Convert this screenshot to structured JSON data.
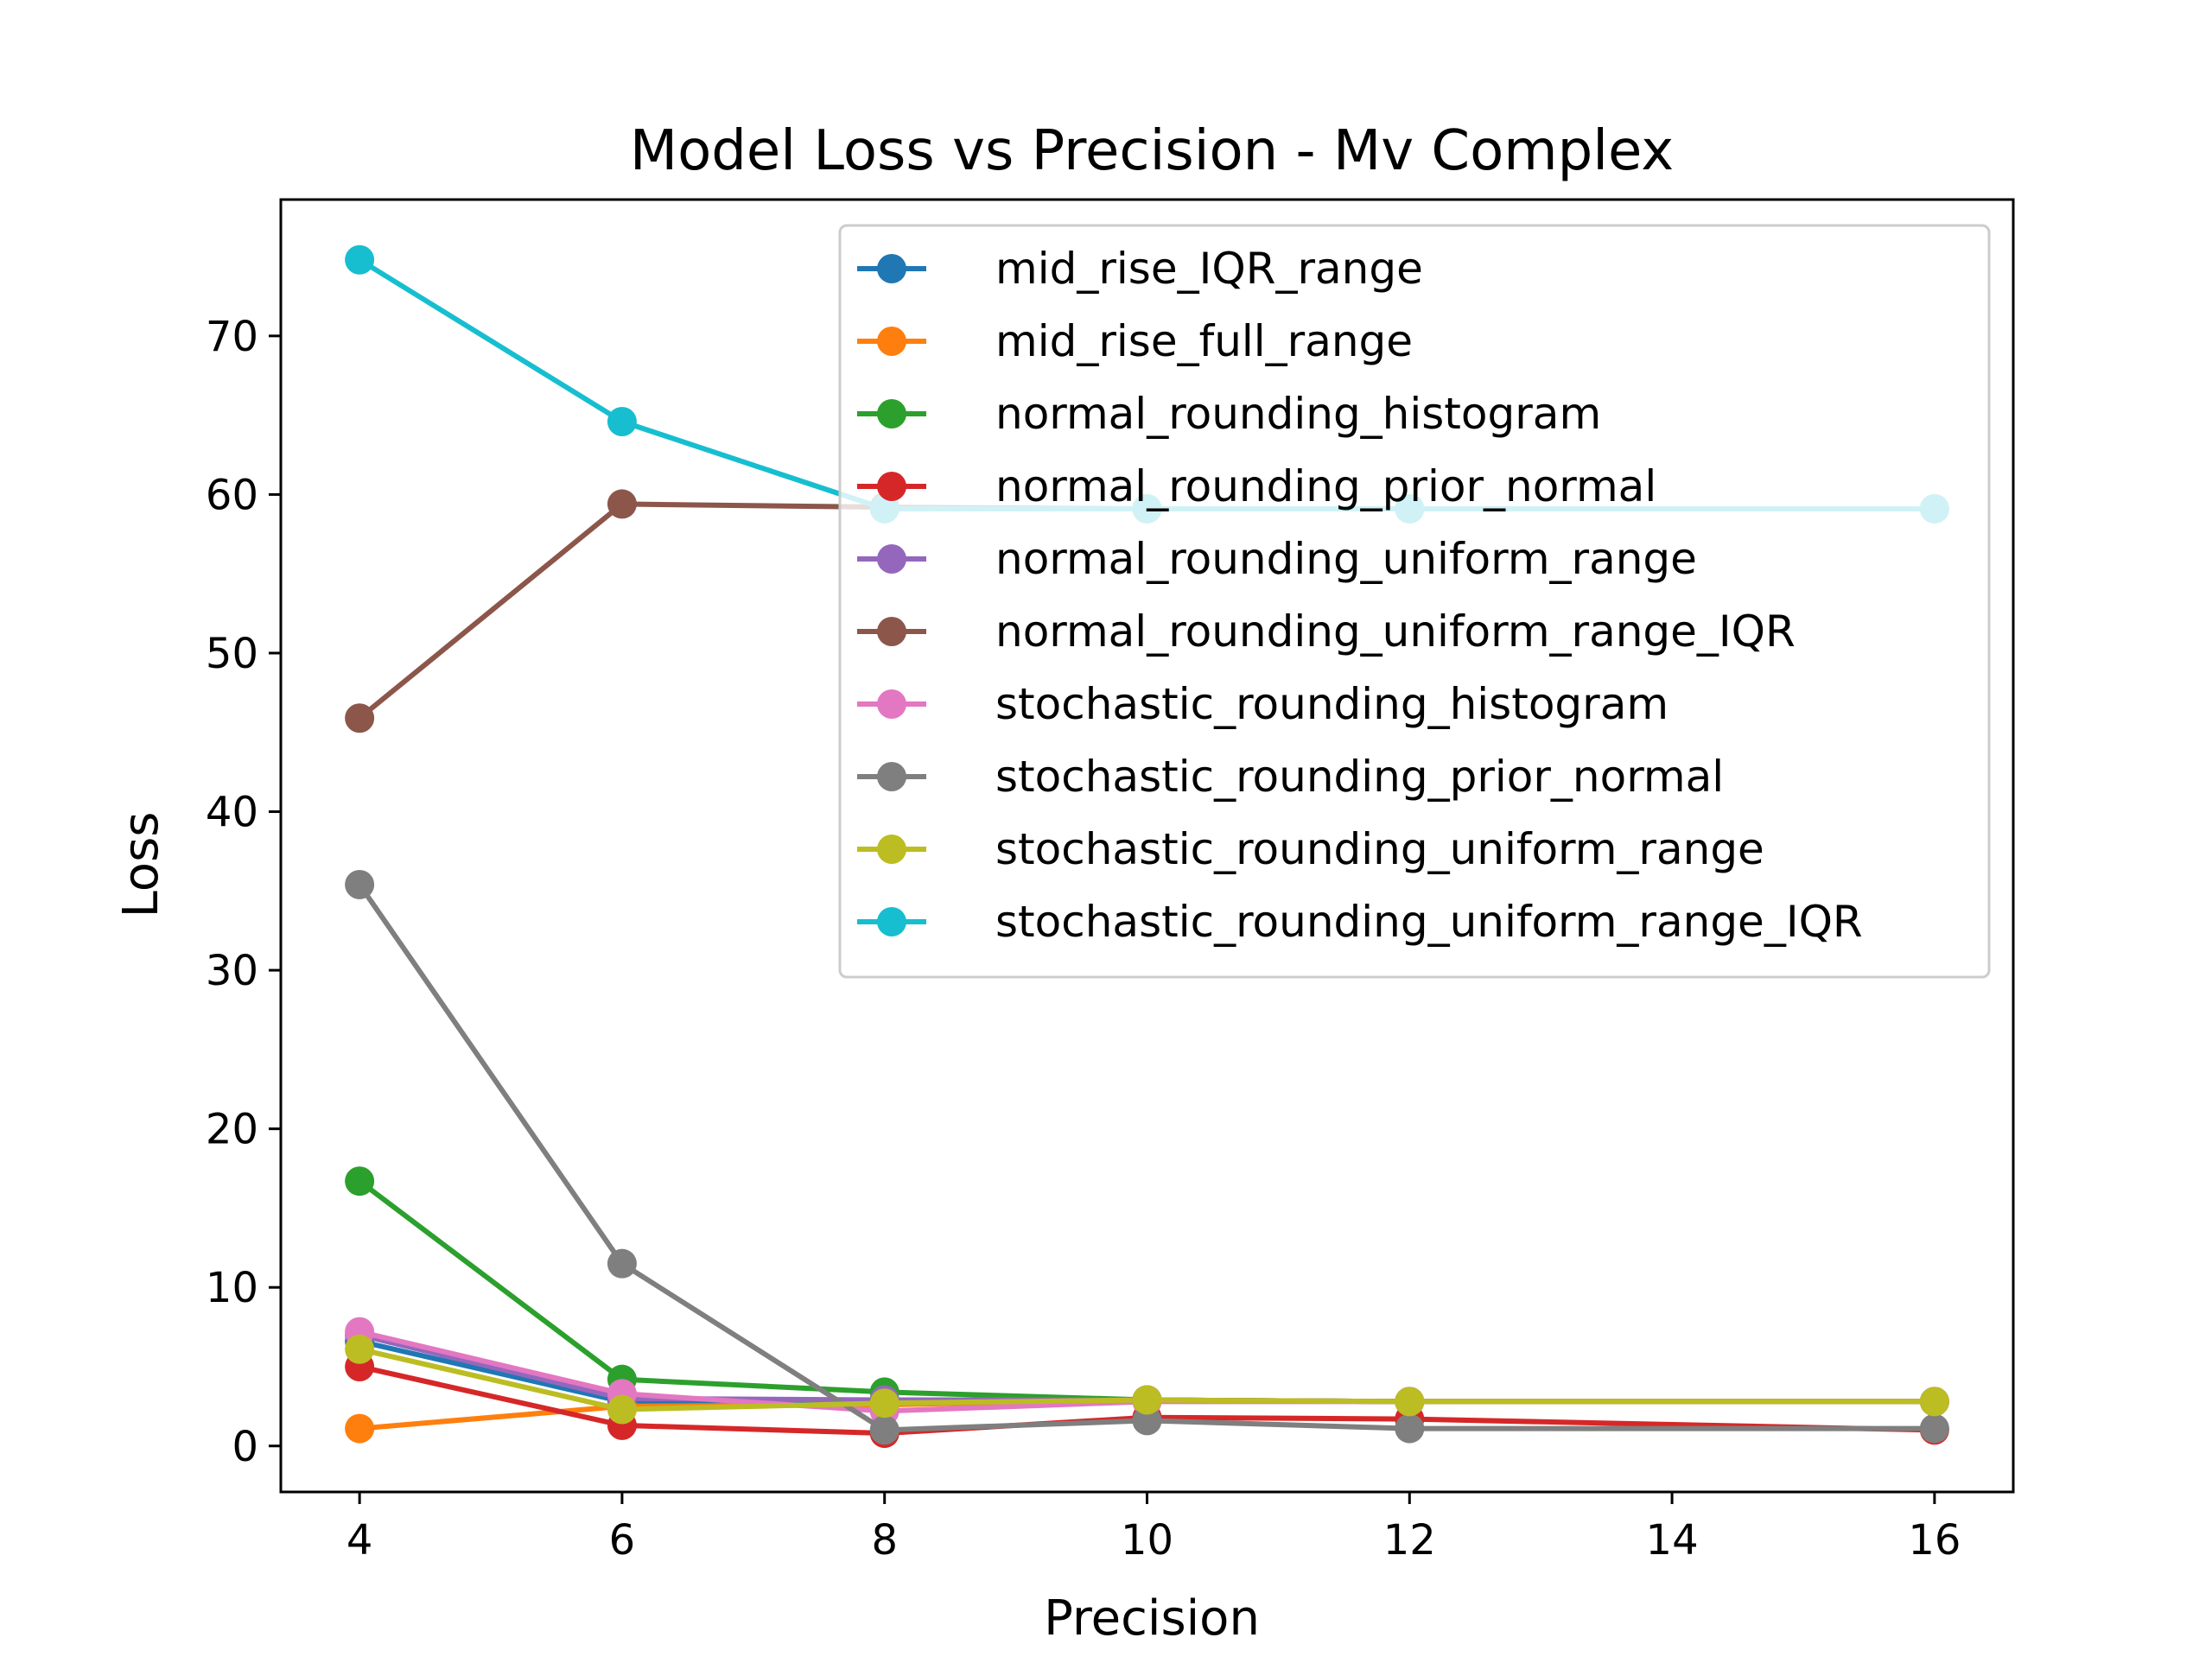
{
  "chart_data": {
    "type": "line",
    "title": "Model Loss vs Precision - Mv Complex",
    "xlabel": "Precision",
    "ylabel": "Loss",
    "x": [
      4,
      6,
      8,
      10,
      12,
      16
    ],
    "xticks": [
      4,
      6,
      8,
      10,
      12,
      14,
      16
    ],
    "yticks": [
      0,
      10,
      20,
      30,
      40,
      50,
      60,
      70
    ],
    "xlim": [
      3.4,
      16.6
    ],
    "ylim": [
      -2.9,
      78.6
    ],
    "grid": false,
    "legend_position": "top-right",
    "series": [
      {
        "name": "mid_rise_IQR_range",
        "color": "#1f77b4",
        "values": [
          6.6,
          2.8,
          2.9,
          2.9,
          2.8,
          2.8
        ]
      },
      {
        "name": "mid_rise_full_range",
        "color": "#ff7f0e",
        "values": [
          1.1,
          2.5,
          2.6,
          2.9,
          2.8,
          2.8
        ]
      },
      {
        "name": "normal_rounding_histogram",
        "color": "#2ca02c",
        "values": [
          16.7,
          4.2,
          3.4,
          2.9,
          2.8,
          2.8
        ]
      },
      {
        "name": "normal_rounding_prior_normal",
        "color": "#d62728",
        "values": [
          5.0,
          1.3,
          0.8,
          1.8,
          1.7,
          1.0
        ]
      },
      {
        "name": "normal_rounding_uniform_range",
        "color": "#9467bd",
        "values": [
          7.0,
          3.0,
          2.9,
          2.9,
          2.8,
          2.8
        ]
      },
      {
        "name": "normal_rounding_uniform_range_IQR",
        "color": "#8c564b",
        "values": [
          45.9,
          59.4,
          59.2,
          59.1,
          59.1,
          59.1
        ]
      },
      {
        "name": "stochastic_rounding_histogram",
        "color": "#e377c2",
        "values": [
          7.2,
          3.3,
          2.2,
          2.8,
          2.8,
          2.8
        ]
      },
      {
        "name": "stochastic_rounding_prior_normal",
        "color": "#7f7f7f",
        "values": [
          35.4,
          11.5,
          1.0,
          1.6,
          1.1,
          1.1
        ]
      },
      {
        "name": "stochastic_rounding_uniform_range",
        "color": "#bcbd22",
        "values": [
          6.1,
          2.3,
          2.7,
          2.9,
          2.8,
          2.8
        ]
      },
      {
        "name": "stochastic_rounding_uniform_range_IQR",
        "color": "#17becf",
        "values": [
          74.8,
          64.6,
          59.1,
          59.1,
          59.1,
          59.1
        ]
      }
    ]
  }
}
